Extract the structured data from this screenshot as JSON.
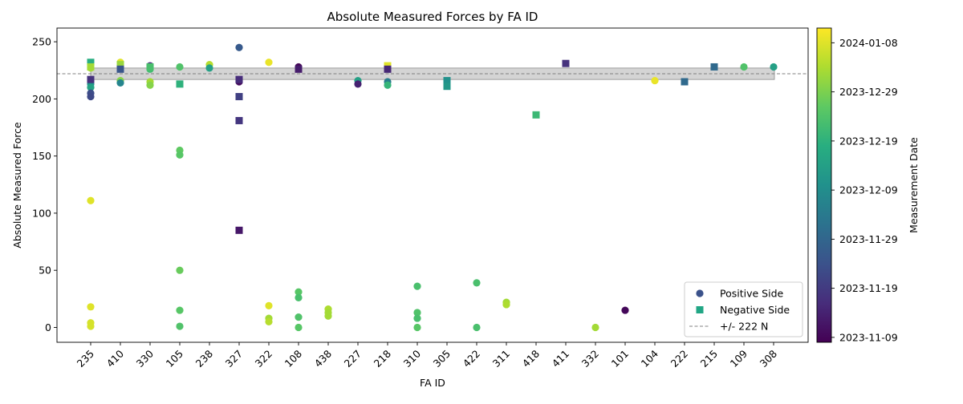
{
  "chart_data": {
    "type": "scatter",
    "title": "Absolute Measured Forces by FA ID",
    "xlabel": "FA ID",
    "ylabel": "Absolute Measured Force",
    "categories": [
      "235",
      "410",
      "330",
      "105",
      "238",
      "327",
      "322",
      "108",
      "438",
      "227",
      "218",
      "310",
      "305",
      "422",
      "311",
      "418",
      "411",
      "332",
      "101",
      "104",
      "222",
      "215",
      "109",
      "308"
    ],
    "ylim": [
      -13,
      262
    ],
    "yticks": [
      0,
      50,
      100,
      150,
      200,
      250
    ],
    "grid": false,
    "legend": {
      "placement": "lower right",
      "entries": [
        {
          "label": "Positive Side",
          "marker": "circle",
          "color": "#3b528b"
        },
        {
          "label": "Negative Side",
          "marker": "square",
          "color": "#21a685"
        },
        {
          "label": "+/- 222 N",
          "marker": "dashed-line",
          "color": "#808080"
        }
      ]
    },
    "reference_line": {
      "value": 222,
      "label": "+/- 222 N",
      "band": [
        217,
        227
      ]
    },
    "colorbar": {
      "label": "Measurement Date",
      "colormap": "viridis",
      "range": [
        "2023-11-08",
        "2024-01-11"
      ],
      "ticks": [
        "2023-11-09",
        "2023-11-19",
        "2023-11-29",
        "2023-12-09",
        "2023-12-19",
        "2023-12-29",
        "2024-01-08"
      ]
    },
    "series": [
      {
        "name": "Positive Side",
        "marker": "circle",
        "points": [
          {
            "x": "235",
            "y": 230,
            "date": "2024-01-04"
          },
          {
            "x": "235",
            "y": 227,
            "date": "2024-01-02"
          },
          {
            "x": "235",
            "y": 213,
            "date": "2023-12-10"
          },
          {
            "x": "235",
            "y": 210,
            "date": "2023-12-15"
          },
          {
            "x": "235",
            "y": 205,
            "date": "2023-11-23"
          },
          {
            "x": "235",
            "y": 202,
            "date": "2023-11-22"
          },
          {
            "x": "235",
            "y": 111,
            "date": "2024-01-08"
          },
          {
            "x": "235",
            "y": 18,
            "date": "2024-01-08"
          },
          {
            "x": "235",
            "y": 4,
            "date": "2024-01-07"
          },
          {
            "x": "235",
            "y": 1,
            "date": "2024-01-07"
          },
          {
            "x": "410",
            "y": 232,
            "date": "2024-01-08"
          },
          {
            "x": "410",
            "y": 228,
            "date": "2023-12-29"
          },
          {
            "x": "410",
            "y": 216,
            "date": "2023-12-30"
          },
          {
            "x": "410",
            "y": 214,
            "date": "2023-12-07"
          },
          {
            "x": "330",
            "y": 229,
            "date": "2023-11-16"
          },
          {
            "x": "330",
            "y": 226,
            "date": "2023-12-22"
          },
          {
            "x": "330",
            "y": 215,
            "date": "2024-01-02"
          },
          {
            "x": "330",
            "y": 212,
            "date": "2023-12-30"
          },
          {
            "x": "105",
            "y": 228,
            "date": "2023-12-24"
          },
          {
            "x": "105",
            "y": 155,
            "date": "2023-12-26"
          },
          {
            "x": "105",
            "y": 151,
            "date": "2023-12-25"
          },
          {
            "x": "105",
            "y": 50,
            "date": "2023-12-27"
          },
          {
            "x": "105",
            "y": 15,
            "date": "2023-12-25"
          },
          {
            "x": "105",
            "y": 1,
            "date": "2023-12-24"
          },
          {
            "x": "238",
            "y": 230,
            "date": "2024-01-04"
          },
          {
            "x": "238",
            "y": 227,
            "date": "2023-12-14"
          },
          {
            "x": "327",
            "y": 245,
            "date": "2023-11-26"
          },
          {
            "x": "327",
            "y": 215,
            "date": "2023-11-10"
          },
          {
            "x": "322",
            "y": 232,
            "date": "2024-01-09"
          },
          {
            "x": "322",
            "y": 19,
            "date": "2024-01-08"
          },
          {
            "x": "322",
            "y": 8,
            "date": "2024-01-02"
          },
          {
            "x": "322",
            "y": 5,
            "date": "2024-01-04"
          },
          {
            "x": "108",
            "y": 228,
            "date": "2023-11-09"
          },
          {
            "x": "108",
            "y": 31,
            "date": "2023-12-25"
          },
          {
            "x": "108",
            "y": 26,
            "date": "2023-12-23"
          },
          {
            "x": "108",
            "y": 9,
            "date": "2023-12-24"
          },
          {
            "x": "108",
            "y": 0,
            "date": "2023-12-25"
          },
          {
            "x": "438",
            "y": 16,
            "date": "2024-01-03"
          },
          {
            "x": "438",
            "y": 13,
            "date": "2024-01-02"
          },
          {
            "x": "438",
            "y": 10,
            "date": "2024-01-02"
          },
          {
            "x": "227",
            "y": 216,
            "date": "2023-12-14"
          },
          {
            "x": "227",
            "y": 213,
            "date": "2023-11-14"
          },
          {
            "x": "218",
            "y": 215,
            "date": "2023-12-05"
          },
          {
            "x": "218",
            "y": 212,
            "date": "2023-12-20"
          },
          {
            "x": "310",
            "y": 36,
            "date": "2023-12-23"
          },
          {
            "x": "310",
            "y": 13,
            "date": "2023-12-24"
          },
          {
            "x": "310",
            "y": 8,
            "date": "2023-12-23"
          },
          {
            "x": "310",
            "y": 0,
            "date": "2023-12-25"
          },
          {
            "x": "422",
            "y": 39,
            "date": "2023-12-23"
          },
          {
            "x": "422",
            "y": 0,
            "date": "2023-12-23"
          },
          {
            "x": "311",
            "y": 22,
            "date": "2024-01-02"
          },
          {
            "x": "311",
            "y": 20,
            "date": "2024-01-03"
          },
          {
            "x": "332",
            "y": 0,
            "date": "2024-01-02"
          },
          {
            "x": "101",
            "y": 15,
            "date": "2023-11-09"
          },
          {
            "x": "104",
            "y": 216,
            "date": "2024-01-09"
          },
          {
            "x": "109",
            "y": 228,
            "date": "2023-12-24"
          },
          {
            "x": "308",
            "y": 228,
            "date": "2023-12-14"
          }
        ]
      },
      {
        "name": "Negative Side",
        "marker": "square",
        "points": [
          {
            "x": "235",
            "y": 232,
            "date": "2023-12-18"
          },
          {
            "x": "235",
            "y": 228,
            "date": "2024-01-02"
          },
          {
            "x": "235",
            "y": 217,
            "date": "2023-11-17"
          },
          {
            "x": "410",
            "y": 230,
            "date": "2024-01-01"
          },
          {
            "x": "410",
            "y": 226,
            "date": "2023-11-25"
          },
          {
            "x": "330",
            "y": 228,
            "date": "2023-12-23"
          },
          {
            "x": "105",
            "y": 213,
            "date": "2023-12-19"
          },
          {
            "x": "327",
            "y": 217,
            "date": "2023-11-16"
          },
          {
            "x": "327",
            "y": 202,
            "date": "2023-11-20"
          },
          {
            "x": "327",
            "y": 181,
            "date": "2023-11-18"
          },
          {
            "x": "327",
            "y": 85,
            "date": "2023-11-12"
          },
          {
            "x": "108",
            "y": 226,
            "date": "2023-11-13"
          },
          {
            "x": "218",
            "y": 229,
            "date": "2024-01-08"
          },
          {
            "x": "218",
            "y": 226,
            "date": "2023-11-15"
          },
          {
            "x": "305",
            "y": 216,
            "date": "2023-12-10"
          },
          {
            "x": "305",
            "y": 211,
            "date": "2023-12-12"
          },
          {
            "x": "418",
            "y": 186,
            "date": "2023-12-21"
          },
          {
            "x": "411",
            "y": 231,
            "date": "2023-11-17"
          },
          {
            "x": "222",
            "y": 215,
            "date": "2023-11-30"
          },
          {
            "x": "215",
            "y": 228,
            "date": "2023-11-30"
          }
        ]
      }
    ]
  }
}
